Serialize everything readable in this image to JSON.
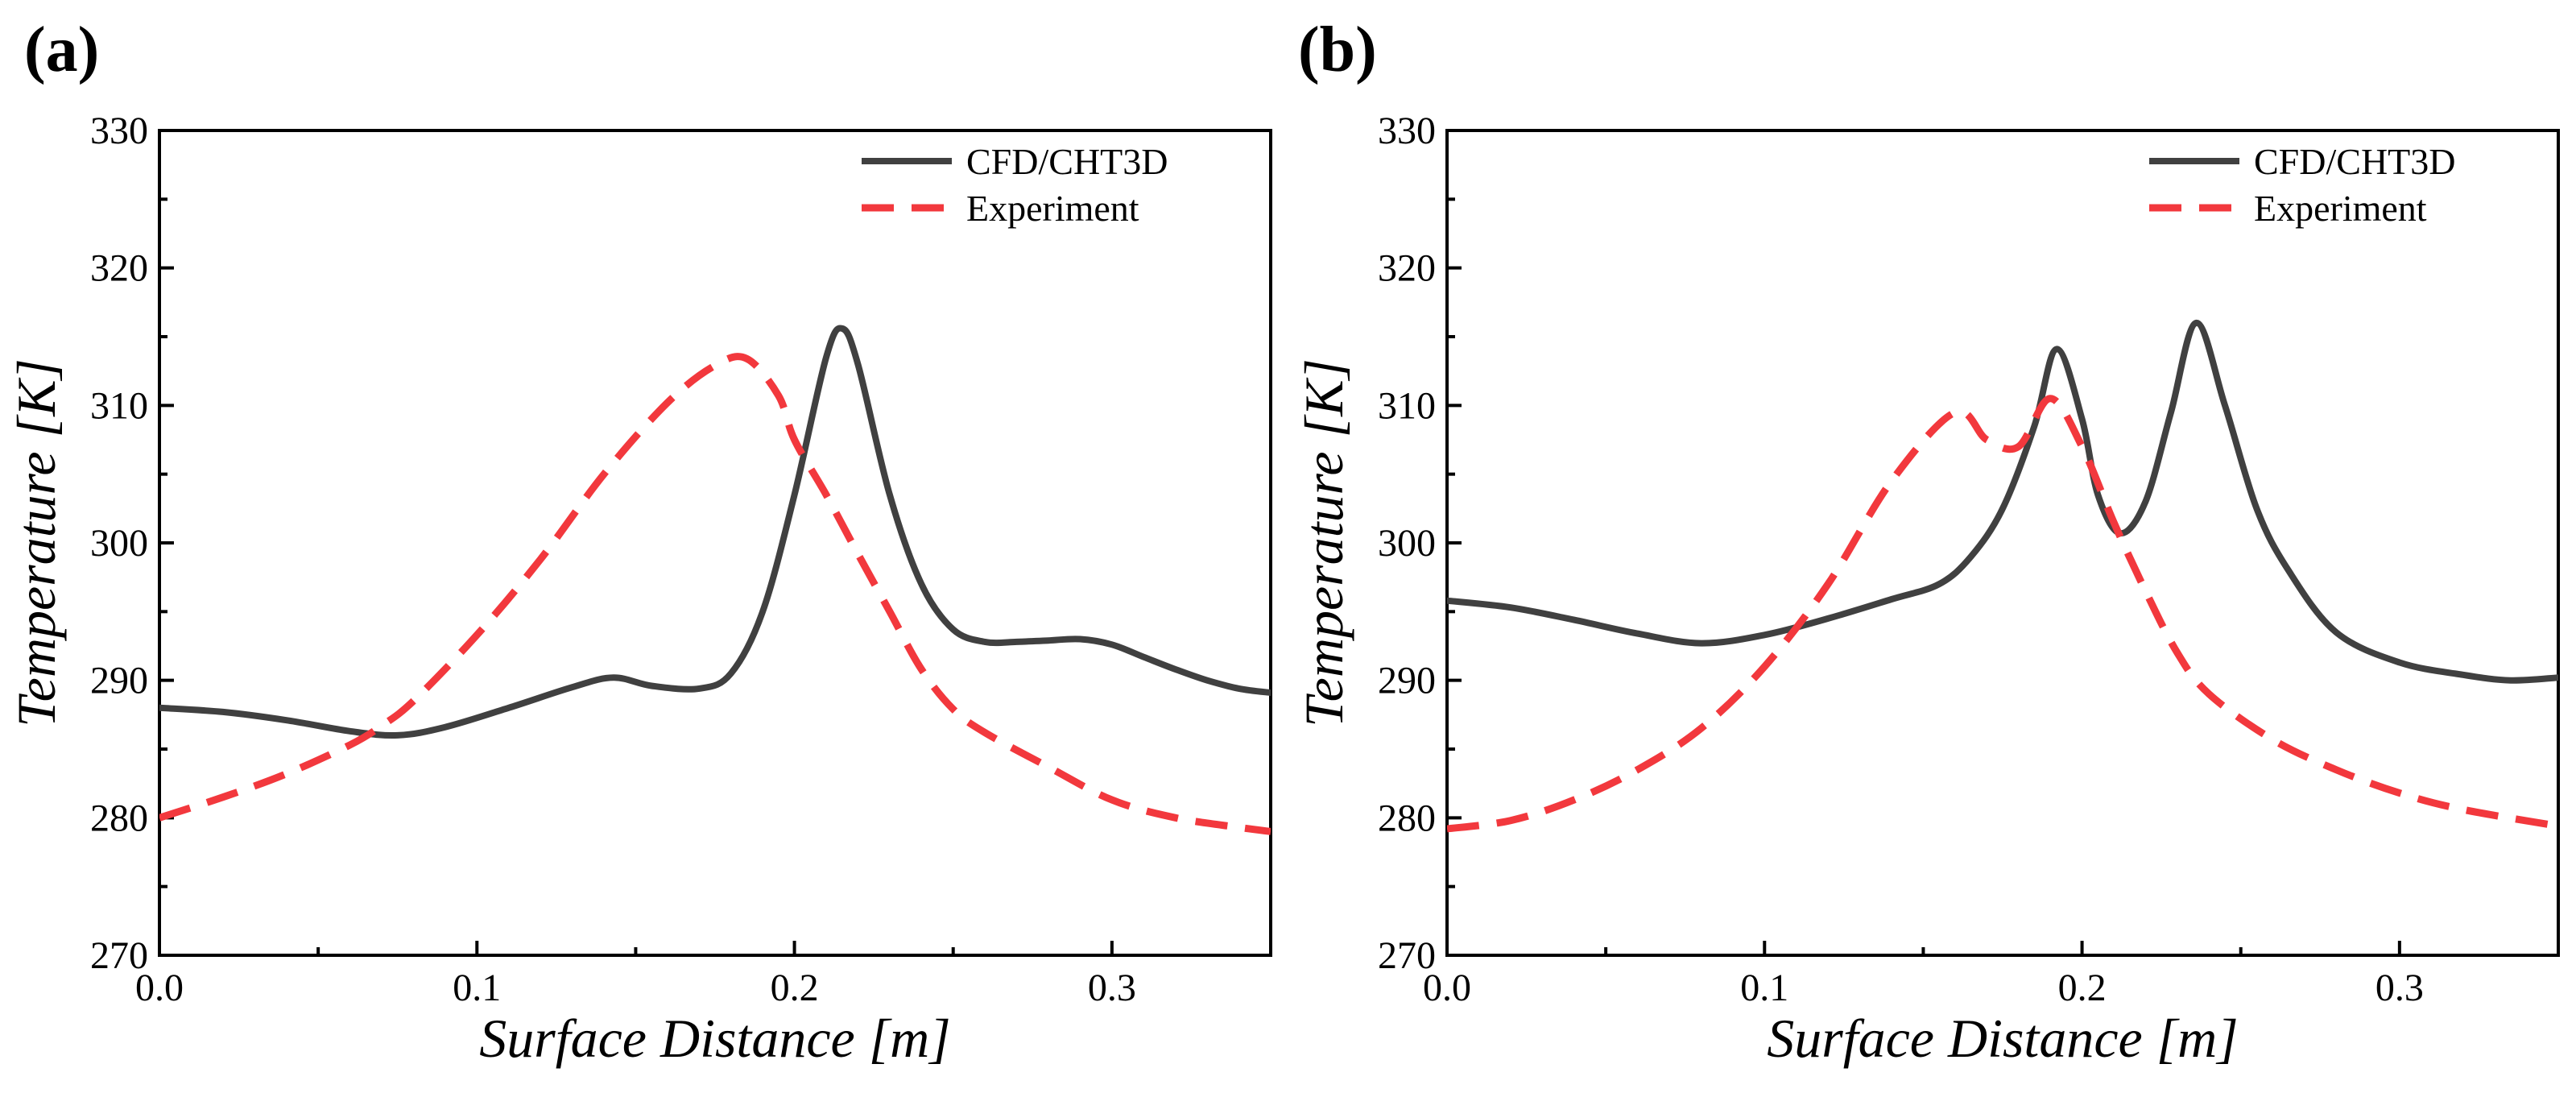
{
  "chart_data": [
    {
      "type": "line",
      "panel_label": "(a)",
      "xlabel": "Surface Distance [m]",
      "ylabel": "Temperature [K]",
      "xlim": [
        0.0,
        0.35
      ],
      "ylim": [
        270,
        330
      ],
      "x_ticks": [
        0.0,
        0.1,
        0.2,
        0.3
      ],
      "x_tick_labels": [
        "0.0",
        "0.1",
        "0.2",
        "0.3"
      ],
      "y_ticks": [
        270,
        280,
        290,
        300,
        310,
        320,
        330
      ],
      "y_tick_labels": [
        "270",
        "280",
        "290",
        "300",
        "310",
        "320",
        "330"
      ],
      "grid": false,
      "legend_position": "top-right",
      "series": [
        {
          "name": "CFD/CHT3D",
          "color": "#404040",
          "style": "solid",
          "x": [
            0.0,
            0.02,
            0.04,
            0.06,
            0.075,
            0.09,
            0.11,
            0.13,
            0.143,
            0.155,
            0.17,
            0.18,
            0.19,
            0.2,
            0.21,
            0.215,
            0.22,
            0.23,
            0.24,
            0.25,
            0.26,
            0.27,
            0.28,
            0.29,
            0.3,
            0.31,
            0.32,
            0.33,
            0.34,
            0.35
          ],
          "values": [
            288.0,
            287.7,
            287.1,
            286.3,
            286.0,
            286.6,
            288.0,
            289.5,
            290.2,
            289.6,
            289.4,
            290.5,
            295.0,
            303.5,
            313.5,
            315.6,
            313.0,
            303.5,
            297.0,
            293.7,
            292.8,
            292.8,
            292.9,
            293.0,
            292.6,
            291.7,
            290.8,
            290.0,
            289.4,
            289.1
          ]
        },
        {
          "name": "Experiment",
          "color": "#f2383d",
          "style": "dashed",
          "x": [
            0.0,
            0.02,
            0.04,
            0.06,
            0.07,
            0.08,
            0.1,
            0.12,
            0.14,
            0.16,
            0.175,
            0.185,
            0.195,
            0.2,
            0.21,
            0.22,
            0.23,
            0.24,
            0.25,
            0.26,
            0.28,
            0.3,
            0.32,
            0.34,
            0.35
          ],
          "values": [
            280.0,
            281.5,
            283.2,
            285.3,
            286.7,
            288.5,
            293.3,
            298.8,
            305.0,
            310.2,
            312.9,
            313.4,
            310.7,
            307.5,
            303.5,
            299.2,
            295.0,
            290.8,
            287.9,
            286.2,
            283.7,
            281.3,
            280.0,
            279.3,
            279.0
          ]
        }
      ]
    },
    {
      "type": "line",
      "panel_label": "(b)",
      "xlabel": "Surface Distance [m]",
      "ylabel": "Temperature [K]",
      "xlim": [
        0.0,
        0.35
      ],
      "ylim": [
        270,
        330
      ],
      "x_ticks": [
        0.0,
        0.1,
        0.2,
        0.3
      ],
      "x_tick_labels": [
        "0.0",
        "0.1",
        "0.2",
        "0.3"
      ],
      "y_ticks": [
        270,
        280,
        290,
        300,
        310,
        320,
        330
      ],
      "y_tick_labels": [
        "270",
        "280",
        "290",
        "300",
        "310",
        "320",
        "330"
      ],
      "grid": false,
      "legend_position": "top-right",
      "series": [
        {
          "name": "CFD/CHT3D",
          "color": "#404040",
          "style": "solid",
          "x": [
            0.0,
            0.02,
            0.04,
            0.06,
            0.08,
            0.1,
            0.12,
            0.14,
            0.155,
            0.165,
            0.175,
            0.185,
            0.192,
            0.2,
            0.205,
            0.212,
            0.22,
            0.228,
            0.236,
            0.245,
            0.255,
            0.265,
            0.28,
            0.3,
            0.32,
            0.335,
            0.35
          ],
          "values": [
            295.8,
            295.3,
            294.4,
            293.4,
            292.7,
            293.3,
            294.5,
            295.9,
            297.0,
            299.0,
            302.5,
            308.5,
            314.1,
            309.0,
            303.5,
            300.7,
            303.0,
            309.5,
            316.0,
            310.0,
            302.5,
            298.0,
            293.5,
            291.3,
            290.4,
            290.0,
            290.2
          ]
        },
        {
          "name": "Experiment",
          "color": "#f2383d",
          "style": "dashed",
          "x": [
            0.0,
            0.02,
            0.04,
            0.06,
            0.08,
            0.1,
            0.12,
            0.14,
            0.16,
            0.17,
            0.18,
            0.19,
            0.2,
            0.21,
            0.22,
            0.23,
            0.24,
            0.26,
            0.28,
            0.3,
            0.32,
            0.35
          ],
          "values": [
            279.2,
            279.8,
            281.3,
            283.5,
            286.5,
            291.0,
            297.0,
            304.5,
            309.5,
            307.5,
            307.0,
            310.5,
            307.0,
            301.5,
            296.5,
            292.0,
            289.0,
            285.7,
            283.5,
            281.8,
            280.6,
            279.4
          ]
        }
      ]
    }
  ]
}
